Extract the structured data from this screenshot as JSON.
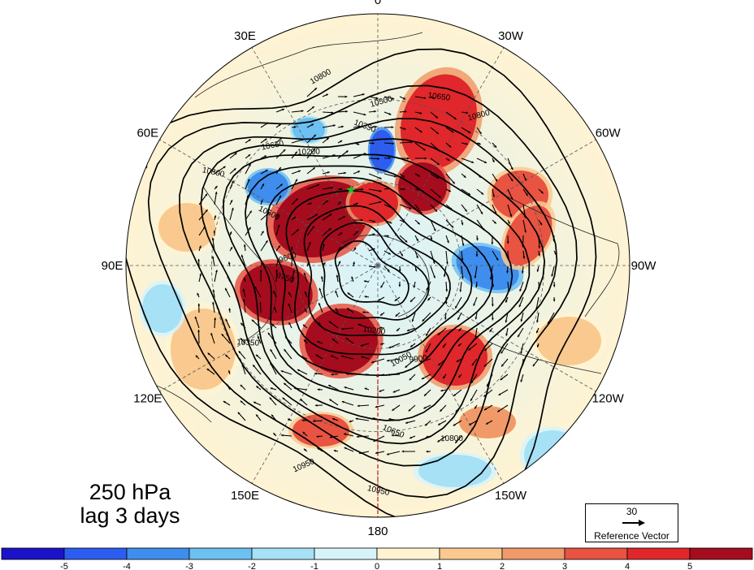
{
  "title": {
    "level": "250 hPa",
    "lag": "lag 3 days"
  },
  "longitude_labels": [
    {
      "text": "0",
      "lon": 0
    },
    {
      "text": "30W",
      "lon": -30
    },
    {
      "text": "60W",
      "lon": -60
    },
    {
      "text": "90W",
      "lon": -90
    },
    {
      "text": "120W",
      "lon": -120
    },
    {
      "text": "150W",
      "lon": -150
    },
    {
      "text": "180",
      "lon": 180
    },
    {
      "text": "150E",
      "lon": 150
    },
    {
      "text": "120E",
      "lon": 120
    },
    {
      "text": "90E",
      "lon": 90
    },
    {
      "text": "60E",
      "lon": 60
    },
    {
      "text": "30E",
      "lon": 30
    }
  ],
  "contour_labels": [
    "10800",
    "10650",
    "10500",
    "10350",
    "10200",
    "10950",
    "10800",
    "10650",
    "10500",
    "10350",
    "9600",
    "9750",
    "9900",
    "10050",
    "10200",
    "10800",
    "10650",
    "10800",
    "10950",
    "10950"
  ],
  "reference_vector": {
    "value": "30",
    "label": "Reference Vector"
  },
  "colorbar": {
    "ticks": [
      "-5",
      "-4",
      "-3",
      "-2",
      "-1",
      "0",
      "1",
      "2",
      "3",
      "4",
      "5"
    ],
    "colors": [
      "#1a13c8",
      "#2d5df0",
      "#3f8eee",
      "#6cc0f2",
      "#a6e1f5",
      "#d7f3fa",
      "#fff3d2",
      "#f9c98f",
      "#f09a6a",
      "#e85342",
      "#e0272b",
      "#a50c1e"
    ]
  },
  "marker": {
    "name": "green-star",
    "color": "#22c022"
  }
}
